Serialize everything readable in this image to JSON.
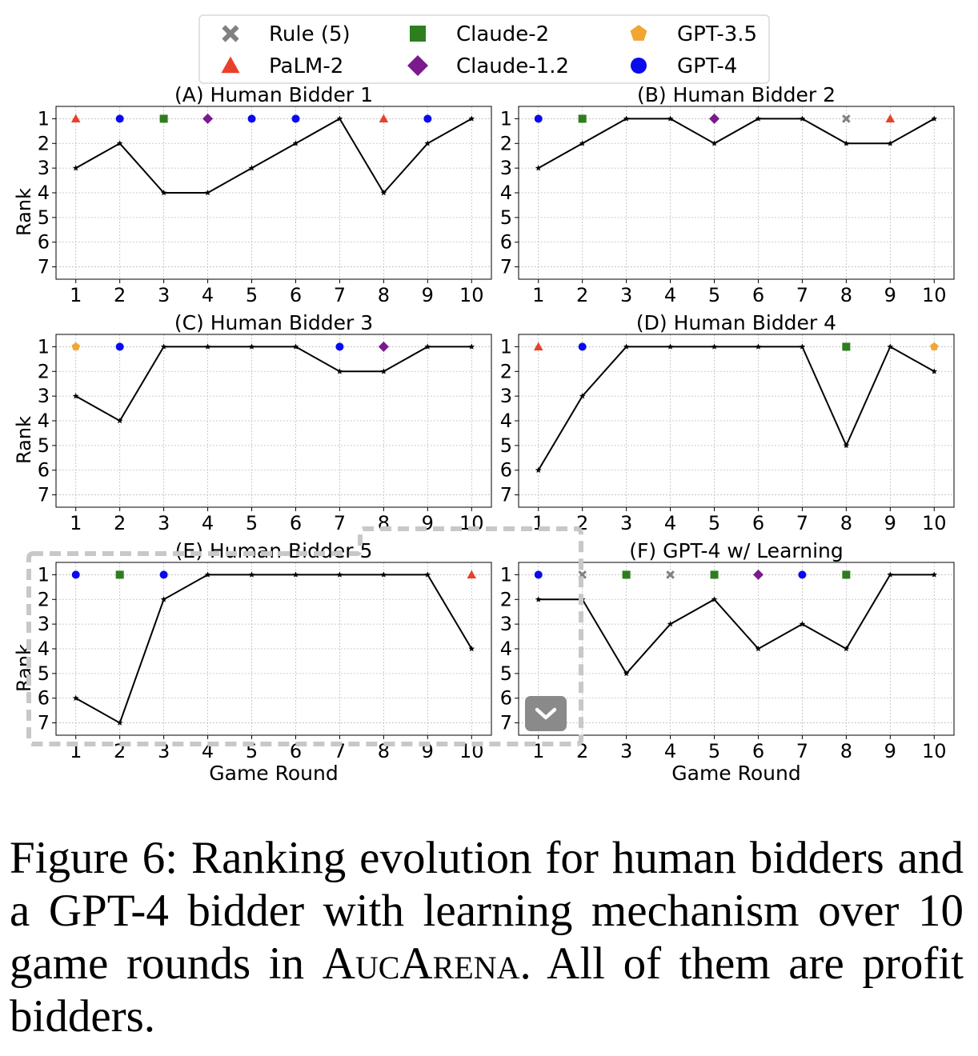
{
  "colors": {
    "rule": "#808080",
    "palm2": "#e8402a",
    "claude2": "#2e7d1e",
    "claude12": "#7a1a8c",
    "gpt35": "#f2a533",
    "gpt4": "#0a0aee",
    "line": "#000000",
    "selection": "#c8c8c8",
    "button": "#8a8a8a"
  },
  "legend": [
    {
      "key": "rule",
      "label": "Rule (5)",
      "marker": "x"
    },
    {
      "key": "claude2",
      "label": "Claude-2",
      "marker": "square"
    },
    {
      "key": "gpt35",
      "label": "GPT-3.5",
      "marker": "pentagon"
    },
    {
      "key": "palm2",
      "label": "PaLM-2",
      "marker": "triangle"
    },
    {
      "key": "claude12",
      "label": "Claude-1.2",
      "marker": "diamond"
    },
    {
      "key": "gpt4",
      "label": "GPT-4",
      "marker": "circle"
    }
  ],
  "chart_data": [
    {
      "type": "line",
      "title": "(A) Human Bidder 1",
      "xlabel": "",
      "ylabel": "Rank",
      "x": [
        1,
        2,
        3,
        4,
        5,
        6,
        7,
        8,
        9,
        10
      ],
      "ranks": [
        3,
        2,
        4,
        4,
        3,
        2,
        1,
        4,
        2,
        1
      ],
      "winners": [
        "palm2",
        "gpt4",
        "claude2",
        "claude12",
        "gpt4",
        "gpt4",
        null,
        "palm2",
        "gpt4",
        null
      ],
      "xlim": [
        0.55,
        10.45
      ],
      "ylim": [
        7.5,
        0.5
      ],
      "yticks": [
        1,
        2,
        3,
        4,
        5,
        6,
        7
      ],
      "grid": true
    },
    {
      "type": "line",
      "title": "(B) Human Bidder 2",
      "xlabel": "",
      "ylabel": "",
      "x": [
        1,
        2,
        3,
        4,
        5,
        6,
        7,
        8,
        9,
        10
      ],
      "ranks": [
        3,
        2,
        1,
        1,
        2,
        1,
        1,
        2,
        2,
        1
      ],
      "winners": [
        "gpt4",
        "claude2",
        null,
        null,
        "claude12",
        null,
        null,
        "rule",
        "palm2",
        null
      ],
      "xlim": [
        0.55,
        10.45
      ],
      "ylim": [
        7.5,
        0.5
      ],
      "yticks": [
        1,
        2,
        3,
        4,
        5,
        6,
        7
      ],
      "grid": true
    },
    {
      "type": "line",
      "title": "(C) Human Bidder 3",
      "xlabel": "",
      "ylabel": "Rank",
      "x": [
        1,
        2,
        3,
        4,
        5,
        6,
        7,
        8,
        9,
        10
      ],
      "ranks": [
        3,
        4,
        1,
        1,
        1,
        1,
        2,
        2,
        1,
        1
      ],
      "winners": [
        "gpt35",
        "gpt4",
        null,
        null,
        null,
        null,
        "gpt4",
        "claude12",
        null,
        null
      ],
      "xlim": [
        0.55,
        10.45
      ],
      "ylim": [
        7.5,
        0.5
      ],
      "yticks": [
        1,
        2,
        3,
        4,
        5,
        6,
        7
      ],
      "grid": true
    },
    {
      "type": "line",
      "title": "(D) Human Bidder 4",
      "xlabel": "",
      "ylabel": "",
      "x": [
        1,
        2,
        3,
        4,
        5,
        6,
        7,
        8,
        9,
        10
      ],
      "ranks": [
        6,
        3,
        1,
        1,
        1,
        1,
        1,
        5,
        1,
        2
      ],
      "winners": [
        "palm2",
        "gpt4",
        null,
        null,
        null,
        null,
        null,
        "claude2",
        null,
        "gpt35"
      ],
      "xlim": [
        0.55,
        10.45
      ],
      "ylim": [
        7.5,
        0.5
      ],
      "yticks": [
        1,
        2,
        3,
        4,
        5,
        6,
        7
      ],
      "grid": true
    },
    {
      "type": "line",
      "title": "(E) Human Bidder 5",
      "xlabel": "Game Round",
      "ylabel": "Rank",
      "x": [
        1,
        2,
        3,
        4,
        5,
        6,
        7,
        8,
        9,
        10
      ],
      "ranks": [
        6,
        7,
        2,
        1,
        1,
        1,
        1,
        1,
        1,
        4
      ],
      "winners": [
        "gpt4",
        "claude2",
        "gpt4",
        null,
        null,
        null,
        null,
        null,
        null,
        "palm2"
      ],
      "xlim": [
        0.55,
        10.45
      ],
      "ylim": [
        7.5,
        0.5
      ],
      "yticks": [
        1,
        2,
        3,
        4,
        5,
        6,
        7
      ],
      "grid": true
    },
    {
      "type": "line",
      "title": "(F) GPT-4 w/ Learning",
      "xlabel": "Game Round",
      "ylabel": "",
      "x": [
        1,
        2,
        3,
        4,
        5,
        6,
        7,
        8,
        9,
        10
      ],
      "ranks": [
        2,
        2,
        5,
        3,
        2,
        4,
        3,
        4,
        1,
        1
      ],
      "winners": [
        "gpt4",
        "rule",
        "claude2",
        "rule",
        "claude2",
        "claude12",
        "gpt4",
        "claude2",
        null,
        null
      ],
      "xlim": [
        0.55,
        10.45
      ],
      "ylim": [
        7.5,
        0.5
      ],
      "yticks": [
        1,
        2,
        3,
        4,
        5,
        6,
        7
      ],
      "grid": true
    }
  ],
  "caption": {
    "lead": "Figure 6:  Ranking evolution for human bidders and a GPT-4 bidder with learning mechanism over 10 game rounds in ",
    "name": "AucArena",
    "tail": ". All of them are profit bidders."
  },
  "overlay": {
    "scroll_button_icon": "chevron-down-icon"
  }
}
